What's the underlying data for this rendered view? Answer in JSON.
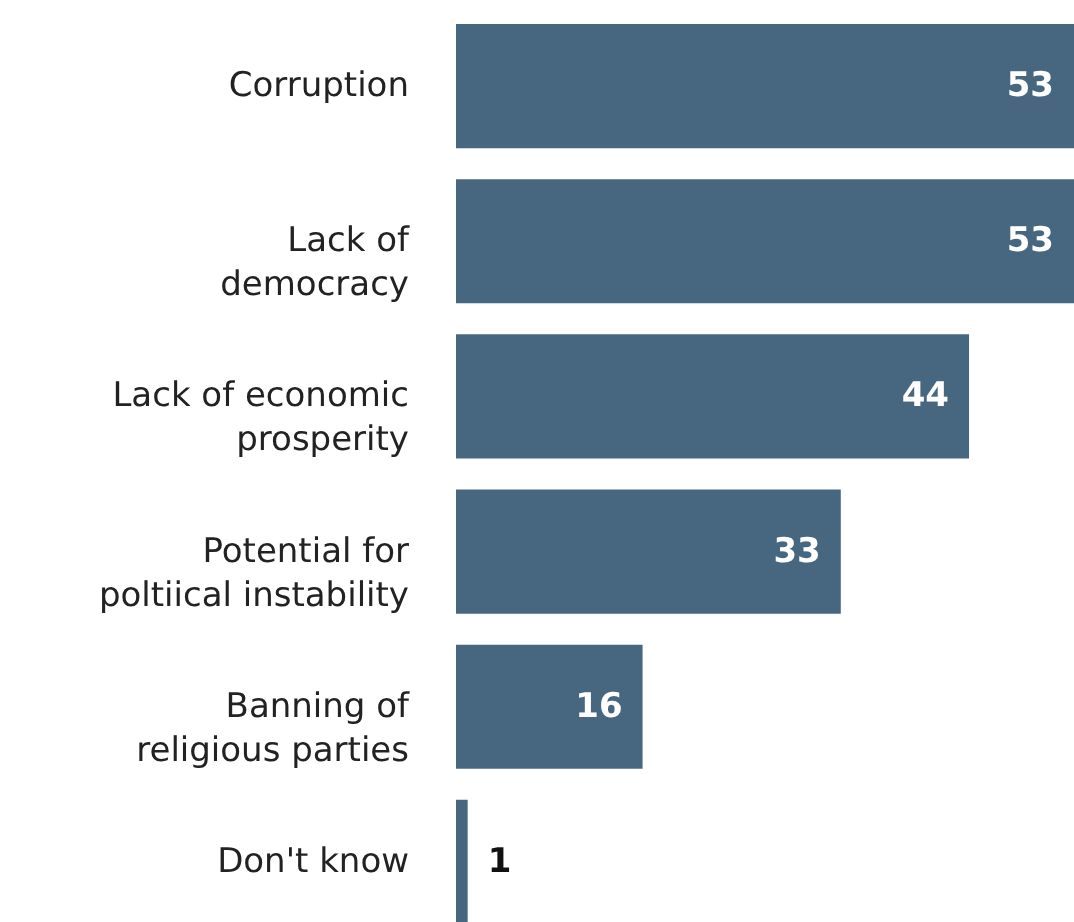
{
  "chart_data": {
    "type": "bar",
    "orientation": "horizontal",
    "categories": [
      "Corruption",
      "Lack of democracy",
      "Lack of economic prosperity",
      "Potential for poltiical instability",
      "Banning of religious parties",
      "Don't know"
    ],
    "values": [
      53,
      53,
      44,
      33,
      16,
      1
    ],
    "color": "#46677f",
    "data_labels": true
  }
}
